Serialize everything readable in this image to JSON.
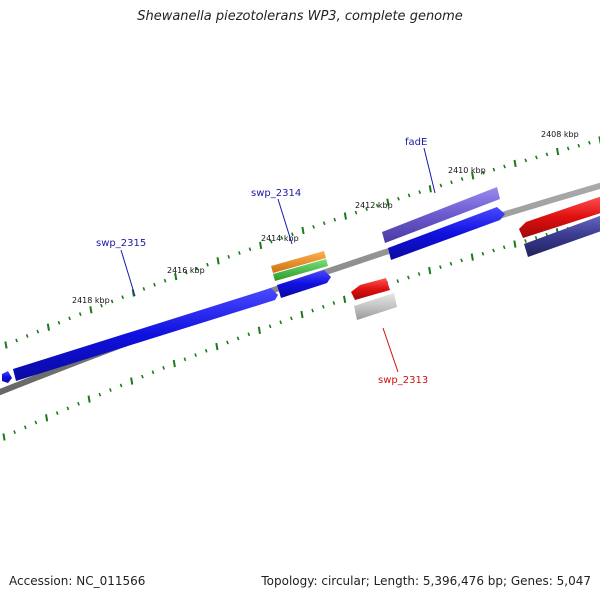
{
  "title": "Shewanella piezotolerans WP3, complete genome",
  "footer": {
    "accession": "Accession: NC_011566",
    "summary": "Topology: circular; Length: 5,396,476 bp; Genes: 5,047"
  },
  "ruler_labels": [
    "2408 kbp",
    "2410 kbp",
    "2412 kbp",
    "2414 kbp",
    "2416 kbp",
    "2418 kbp"
  ],
  "gene_labels": [
    {
      "name": "fadE",
      "color": "#1a1aa8"
    },
    {
      "name": "swp_2314",
      "color": "#1a1aa8"
    },
    {
      "name": "swp_2315",
      "color": "#1a1aa8"
    },
    {
      "name": "swp_2313",
      "color": "#cc1111"
    }
  ],
  "colors": {
    "backbone": "#888888",
    "forward_gene": "#1010e0",
    "reverse_gene": "#e01010",
    "gc_ticks": "#1b7a1b",
    "rrna_orange": "#e8891a",
    "rrna_green": "#3cb83c",
    "pseudo_gray": "#c4c4c4",
    "purple_gene": "#6a5acd",
    "dark_navy_gene": "#3a3a90"
  }
}
